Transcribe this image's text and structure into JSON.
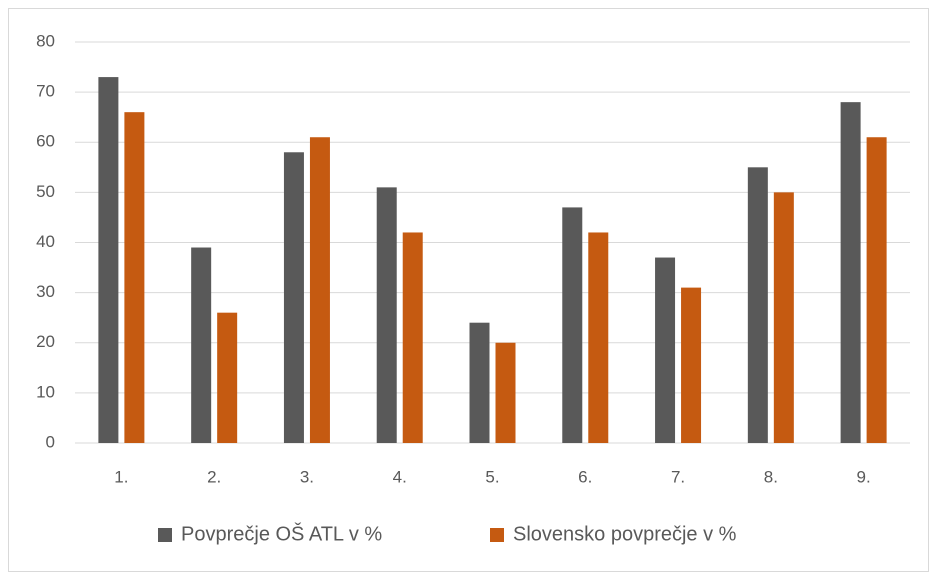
{
  "chart_data": {
    "type": "bar",
    "categories": [
      "1.",
      "2.",
      "3.",
      "4.",
      "5.",
      "6.",
      "7.",
      "8.",
      "9."
    ],
    "series": [
      {
        "name": "Povprečje OŠ ATL v %",
        "color": "#595959",
        "values": [
          73,
          39,
          58,
          51,
          24,
          47,
          37,
          55,
          68
        ]
      },
      {
        "name": "Slovensko povprečje v %",
        "color": "#c55a11",
        "values": [
          66,
          26,
          61,
          42,
          20,
          42,
          31,
          50,
          61
        ]
      }
    ],
    "ylim": [
      0,
      80
    ],
    "yticks": [
      0,
      10,
      20,
      30,
      40,
      50,
      60,
      70,
      80
    ],
    "grid": true,
    "legend": "bottom"
  }
}
